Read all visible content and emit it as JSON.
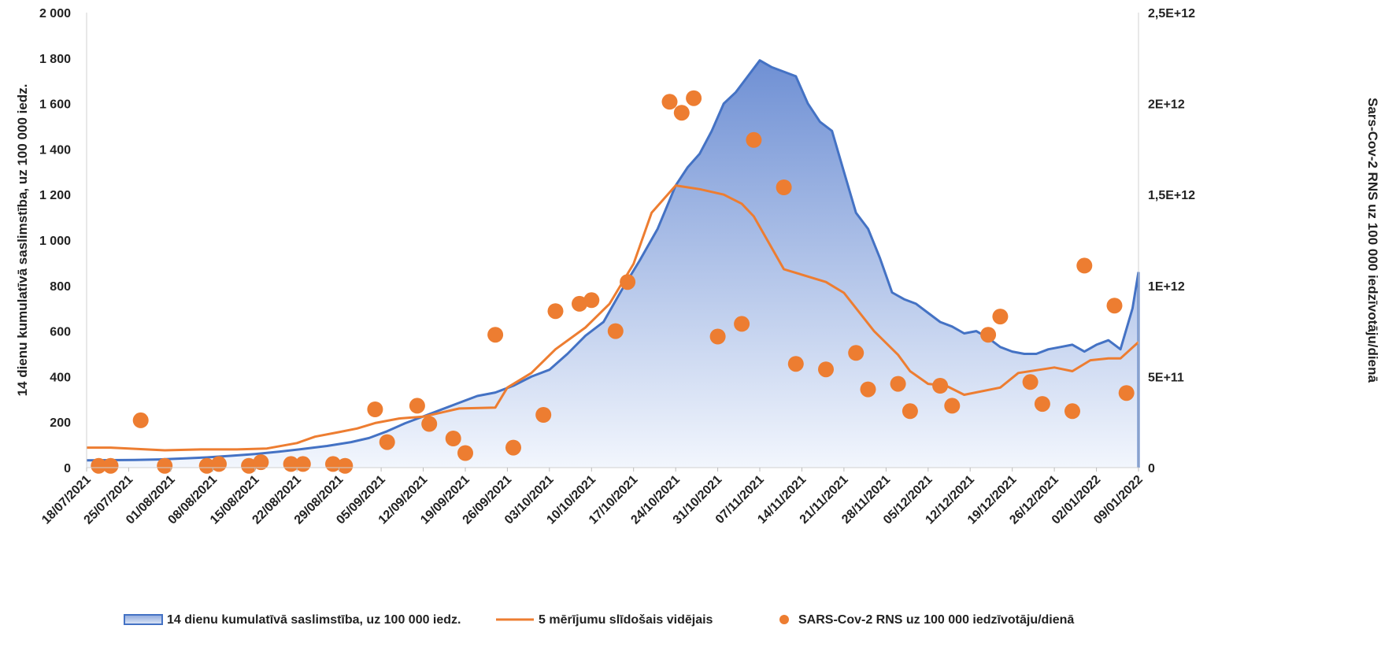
{
  "chart_data": {
    "type": "line",
    "title": "",
    "xlabel": "",
    "ylabel": "14 dienu kumulatīvā saslimstība, uz 100 000 iedz.",
    "y2label": "Sars-Cov-2 RNS uz 100 000 iedzīvotāju/dienā",
    "ylim": [
      0,
      2000
    ],
    "y2lim": [
      0,
      2500000000000
    ],
    "grid": false,
    "legend_position": "bottom",
    "x_range": [
      "2021-07-18",
      "2022-01-09"
    ],
    "x_ticks": [
      "2021-07-18",
      "2021-07-25",
      "2021-08-01",
      "2021-08-08",
      "2021-08-15",
      "2021-08-22",
      "2021-08-29",
      "2021-09-05",
      "2021-09-12",
      "2021-09-19",
      "2021-09-26",
      "2021-10-03",
      "2021-10-10",
      "2021-10-17",
      "2021-10-24",
      "2021-10-31",
      "2021-11-07",
      "2021-11-14",
      "2021-11-21",
      "2021-11-28",
      "2021-12-05",
      "2021-12-12",
      "2021-12-19",
      "2021-12-26",
      "2022-01-02",
      "2022-01-09"
    ],
    "x_tick_labels": [
      "18/07/2021",
      "25/07/2021",
      "01/08/2021",
      "08/08/2021",
      "15/08/2021",
      "22/08/2021",
      "29/08/2021",
      "05/09/2021",
      "12/09/2021",
      "19/09/2021",
      "26/09/2021",
      "03/10/2021",
      "10/10/2021",
      "17/10/2021",
      "24/10/2021",
      "31/10/2021",
      "07/11/2021",
      "14/11/2021",
      "21/11/2021",
      "28/11/2021",
      "05/12/2021",
      "12/12/2021",
      "19/12/2021",
      "26/12/2021",
      "02/01/2022",
      "09/01/2022"
    ],
    "y_tick_labels": [
      "0",
      "200",
      "400",
      "600",
      "800",
      "1 000",
      "1 200",
      "1 400",
      "1 600",
      "1 800",
      "2 000"
    ],
    "y2_tick_labels": [
      "0",
      "5E+11",
      "1E+12",
      "1,5E+12",
      "2E+12",
      "2,5E+12"
    ],
    "series": [
      {
        "name": "14 dienu kumulatīvā saslimstība, uz 100 000 iedz.",
        "type": "area",
        "axis": "left",
        "color": "#4472c4",
        "x": [
          "2021-07-18",
          "2021-07-22",
          "2021-07-26",
          "2021-07-30",
          "2021-08-03",
          "2021-08-07",
          "2021-08-11",
          "2021-08-15",
          "2021-08-19",
          "2021-08-23",
          "2021-08-27",
          "2021-08-31",
          "2021-09-03",
          "2021-09-06",
          "2021-09-09",
          "2021-09-12",
          "2021-09-15",
          "2021-09-18",
          "2021-09-21",
          "2021-09-24",
          "2021-09-27",
          "2021-09-30",
          "2021-10-03",
          "2021-10-06",
          "2021-10-09",
          "2021-10-12",
          "2021-10-15",
          "2021-10-18",
          "2021-10-21",
          "2021-10-24",
          "2021-10-26",
          "2021-10-28",
          "2021-10-30",
          "2021-11-01",
          "2021-11-03",
          "2021-11-05",
          "2021-11-07",
          "2021-11-09",
          "2021-11-11",
          "2021-11-13",
          "2021-11-15",
          "2021-11-17",
          "2021-11-19",
          "2021-11-21",
          "2021-11-23",
          "2021-11-25",
          "2021-11-27",
          "2021-11-29",
          "2021-12-01",
          "2021-12-03",
          "2021-12-05",
          "2021-12-07",
          "2021-12-09",
          "2021-12-11",
          "2021-12-13",
          "2021-12-15",
          "2021-12-17",
          "2021-12-19",
          "2021-12-21",
          "2021-12-23",
          "2021-12-25",
          "2021-12-27",
          "2021-12-29",
          "2021-12-31",
          "2022-01-02",
          "2022-01-04",
          "2022-01-06",
          "2022-01-08",
          "2022-01-10"
        ],
        "values": [
          32,
          33,
          34,
          36,
          40,
          45,
          52,
          60,
          70,
          82,
          95,
          112,
          130,
          160,
          195,
          225,
          255,
          285,
          315,
          330,
          360,
          400,
          430,
          500,
          580,
          640,
          780,
          910,
          1050,
          1240,
          1320,
          1380,
          1480,
          1600,
          1650,
          1720,
          1790,
          1760,
          1740,
          1720,
          1600,
          1520,
          1480,
          1300,
          1120,
          1050,
          920,
          770,
          740,
          720,
          680,
          640,
          620,
          590,
          600,
          570,
          530,
          510,
          500,
          500,
          520,
          530,
          540,
          510,
          540,
          560,
          520,
          700,
          860
        ]
      },
      {
        "name": "5 mērījumu slīdošais vidējais",
        "type": "line",
        "axis": "right",
        "color": "#ed7d31",
        "x": [
          "2021-07-18",
          "2021-07-22",
          "2021-07-31",
          "2021-08-06",
          "2021-08-12",
          "2021-08-17",
          "2021-08-22",
          "2021-08-25",
          "2021-08-29",
          "2021-09-01",
          "2021-09-04",
          "2021-09-08",
          "2021-09-12",
          "2021-09-16",
          "2021-09-18",
          "2021-09-24",
          "2021-09-26",
          "2021-09-30",
          "2021-10-04",
          "2021-10-09",
          "2021-10-13",
          "2021-10-17",
          "2021-10-20",
          "2021-10-24",
          "2021-10-28",
          "2021-11-01",
          "2021-11-04",
          "2021-11-06",
          "2021-11-11",
          "2021-11-13",
          "2021-11-18",
          "2021-11-21",
          "2021-11-26",
          "2021-11-30",
          "2021-12-02",
          "2021-12-05",
          "2021-12-08",
          "2021-12-11",
          "2021-12-17",
          "2021-12-20",
          "2021-12-26",
          "2021-12-29",
          "2022-01-01",
          "2022-01-04",
          "2022-01-06",
          "2022-01-09"
        ],
        "values": [
          110000000000.0,
          110000000000.0,
          95000000000.0,
          100000000000.0,
          100000000000.0,
          105000000000.0,
          135000000000.0,
          170000000000.0,
          195000000000.0,
          215000000000.0,
          245000000000.0,
          270000000000.0,
          280000000000.0,
          310000000000.0,
          325000000000.0,
          330000000000.0,
          440000000000.0,
          520000000000.0,
          650000000000.0,
          770000000000.0,
          900000000000.0,
          1120000000000.0,
          1400000000000.0,
          1550000000000.0,
          1530000000000.0,
          1500000000000.0,
          1450000000000.0,
          1380000000000.0,
          1090000000000.0,
          1070000000000.0,
          1020000000000.0,
          960000000000.0,
          750000000000.0,
          620000000000.0,
          530000000000.0,
          460000000000.0,
          450000000000.0,
          400000000000.0,
          440000000000.0,
          520000000000.0,
          550000000000.0,
          530000000000.0,
          590000000000.0,
          600000000000.0,
          600000000000.0,
          690000000000.0
        ]
      },
      {
        "name": "SARS-Cov-2 RNS uz 100 000 iedzīvotāju/dienā",
        "type": "scatter",
        "axis": "right",
        "color": "#ed7d31",
        "x": [
          "2021-07-20",
          "2021-07-22",
          "2021-07-27",
          "2021-07-31",
          "2021-08-07",
          "2021-08-09",
          "2021-08-14",
          "2021-08-16",
          "2021-08-21",
          "2021-08-23",
          "2021-08-28",
          "2021-08-30",
          "2021-09-04",
          "2021-09-06",
          "2021-09-11",
          "2021-09-13",
          "2021-09-17",
          "2021-09-19",
          "2021-09-24",
          "2021-09-27",
          "2021-10-02",
          "2021-10-04",
          "2021-10-08",
          "2021-10-10",
          "2021-10-14",
          "2021-10-16",
          "2021-10-23",
          "2021-10-25",
          "2021-10-27",
          "2021-10-31",
          "2021-11-04",
          "2021-11-06",
          "2021-11-11",
          "2021-11-13",
          "2021-11-18",
          "2021-11-23",
          "2021-11-25",
          "2021-11-30",
          "2021-12-02",
          "2021-12-07",
          "2021-12-09",
          "2021-12-15",
          "2021-12-17",
          "2021-12-22",
          "2021-12-24",
          "2021-12-29",
          "2021-12-31",
          "2022-01-05",
          "2022-01-07"
        ],
        "values": [
          10000000000.0,
          10000000000.0,
          260000000000.0,
          10000000000.0,
          10000000000.0,
          20000000000.0,
          10000000000.0,
          30000000000.0,
          20000000000.0,
          20000000000.0,
          20000000000.0,
          10000000000.0,
          320000000000.0,
          140000000000.0,
          340000000000.0,
          240000000000.0,
          160000000000.0,
          80000000000.0,
          730000000000.0,
          110000000000.0,
          290000000000.0,
          860000000000.0,
          900000000000.0,
          920000000000.0,
          750000000000.0,
          1020000000000.0,
          2010000000000.0,
          1950000000000.0,
          2030000000000.0,
          720000000000.0,
          790000000000.0,
          1800000000000.0,
          1540000000000.0,
          570000000000.0,
          540000000000.0,
          630000000000.0,
          430000000000.0,
          460000000000.0,
          310000000000.0,
          450000000000.0,
          340000000000.0,
          730000000000.0,
          830000000000.0,
          470000000000.0,
          350000000000.0,
          310000000000.0,
          1110000000000.0,
          890000000000.0,
          410000000000.0
        ]
      }
    ]
  }
}
